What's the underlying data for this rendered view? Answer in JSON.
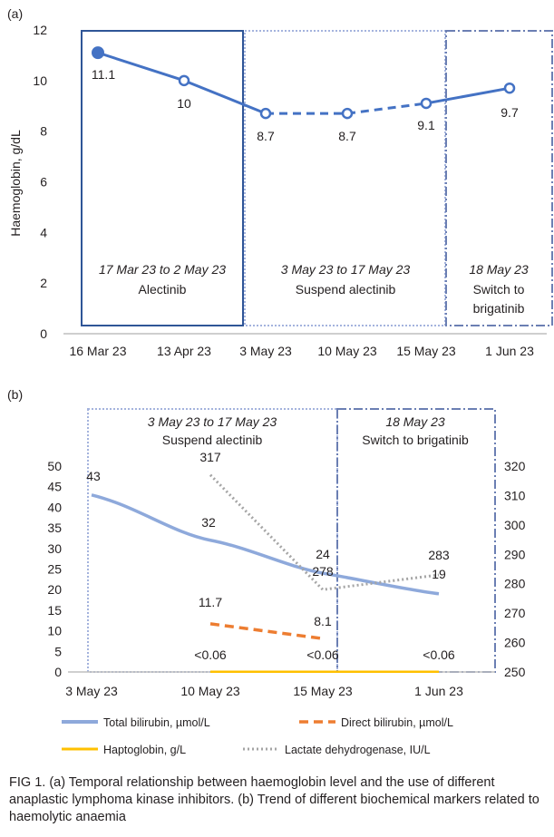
{
  "chart_data": [
    {
      "panel_label": "(a)",
      "type": "line",
      "ylabel": "Haemoglobin, g/dL",
      "ylim": [
        0,
        12
      ],
      "y_ticks": [
        "0",
        "2",
        "4",
        "6",
        "8",
        "10",
        "12"
      ],
      "categories": [
        "16 Mar 23",
        "13 Apr 23",
        "3 May 23",
        "10 May 23",
        "15 May 23",
        "1 Jun 23"
      ],
      "series": [
        {
          "values": [
            11.1,
            10,
            8.7,
            8.7,
            9.1,
            9.7
          ],
          "labels": [
            "11.1",
            "10",
            "8.7",
            "8.7",
            "9.1",
            "9.7"
          ],
          "color": "#4472c4"
        }
      ],
      "phases": [
        {
          "dates": "17 Mar 23 to 2 May 23",
          "label": "Alectinib"
        },
        {
          "dates": "3 May 23 to 17 May 23",
          "label": "Suspend alectinib"
        },
        {
          "dates": "18 May 23",
          "label": "Switch to",
          "label2": "brigatinib"
        }
      ]
    },
    {
      "panel_label": "(b)",
      "type": "line",
      "categories": [
        "3 May 23",
        "10 May 23",
        "15 May 23",
        "1 Jun 23"
      ],
      "ylim": [
        0,
        50
      ],
      "y_ticks": [
        "0",
        "5",
        "10",
        "15",
        "20",
        "25",
        "30",
        "35",
        "40",
        "45",
        "50"
      ],
      "y2lim": [
        250,
        320
      ],
      "y2_ticks": [
        "250",
        "260",
        "270",
        "280",
        "290",
        "300",
        "310",
        "320"
      ],
      "series": [
        {
          "name": "Total bilirubin, µmol/L",
          "values": [
            43,
            32,
            24,
            19
          ],
          "labels": [
            "43",
            "32",
            "24",
            "19"
          ],
          "color": "#8ea9db",
          "axis": "left"
        },
        {
          "name": "Direct bilirubin, µmol/L",
          "values": [
            null,
            11.7,
            8.1,
            null
          ],
          "labels": [
            "",
            "11.7",
            "8.1",
            ""
          ],
          "color": "#ed7d31",
          "axis": "left"
        },
        {
          "name": "Haptoglobin, g/L",
          "values": [
            null,
            0.06,
            0.06,
            0.06
          ],
          "labels": [
            "",
            "<0.06",
            "<0.06",
            "<0.06"
          ],
          "color": "#ffc000",
          "axis": "left"
        },
        {
          "name": "Lactate dehydrogenase, IU/L",
          "values": [
            null,
            317,
            278,
            283
          ],
          "labels": [
            "",
            "317",
            "278",
            "283"
          ],
          "color": "#a5a5a5",
          "axis": "right"
        }
      ],
      "phases": [
        {
          "dates": "3 May 23 to 17 May 23",
          "label": "Suspend alectinib"
        },
        {
          "dates": "18 May 23",
          "label": "Switch to brigatinib"
        }
      ]
    }
  ],
  "caption": "FIG 1.  (a) Temporal relationship between haemoglobin level and the use of different anaplastic lymphoma kinase inhibitors. (b) Trend of different biochemical markers related to haemolytic anaemia"
}
